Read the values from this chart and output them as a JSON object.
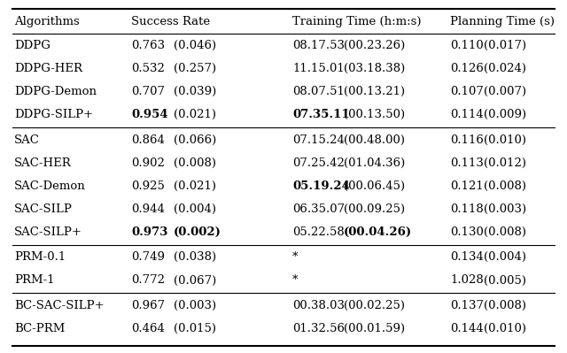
{
  "headers": [
    "Algorithms",
    "Success Rate",
    "Training Time (h:m:s)",
    "Planning Time (s)"
  ],
  "rows": [
    {
      "group": "DDPG",
      "algo": "DDPG",
      "sr_main": "0.763",
      "sr_std": "(0.046)",
      "sr_bm": false,
      "sr_bs": false,
      "tt_main": "08.17.53",
      "tt_std": "(00.23.26)",
      "tt_bm": false,
      "tt_bs": false,
      "pt_main": "0.110",
      "pt_std": "(0.017)",
      "pt_bm": false,
      "pt_bs": false
    },
    {
      "group": "DDPG",
      "algo": "DDPG-HER",
      "sr_main": "0.532",
      "sr_std": "(0.257)",
      "sr_bm": false,
      "sr_bs": false,
      "tt_main": "11.15.01",
      "tt_std": "(03.18.38)",
      "tt_bm": false,
      "tt_bs": false,
      "pt_main": "0.126",
      "pt_std": "(0.024)",
      "pt_bm": false,
      "pt_bs": false
    },
    {
      "group": "DDPG",
      "algo": "DDPG-Demon",
      "sr_main": "0.707",
      "sr_std": "(0.039)",
      "sr_bm": false,
      "sr_bs": false,
      "tt_main": "08.07.51",
      "tt_std": "(00.13.21)",
      "tt_bm": false,
      "tt_bs": false,
      "pt_main": "0.107",
      "pt_std": "(0.007)",
      "pt_bm": false,
      "pt_bs": false
    },
    {
      "group": "DDPG",
      "algo": "DDPG-SILP+",
      "sr_main": "0.954",
      "sr_std": "(0.021)",
      "sr_bm": true,
      "sr_bs": false,
      "tt_main": "07.35.11",
      "tt_std": "(00.13.50)",
      "tt_bm": true,
      "tt_bs": false,
      "pt_main": "0.114",
      "pt_std": "(0.009)",
      "pt_bm": false,
      "pt_bs": false
    },
    {
      "group": "SAC",
      "algo": "SAC",
      "sr_main": "0.864",
      "sr_std": "(0.066)",
      "sr_bm": false,
      "sr_bs": false,
      "tt_main": "07.15.24",
      "tt_std": "(00.48.00)",
      "tt_bm": false,
      "tt_bs": false,
      "pt_main": "0.116",
      "pt_std": "(0.010)",
      "pt_bm": false,
      "pt_bs": false
    },
    {
      "group": "SAC",
      "algo": "SAC-HER",
      "sr_main": "0.902",
      "sr_std": "(0.008)",
      "sr_bm": false,
      "sr_bs": false,
      "tt_main": "07.25.42",
      "tt_std": "(01.04.36)",
      "tt_bm": false,
      "tt_bs": false,
      "pt_main": "0.113",
      "pt_std": "(0.012)",
      "pt_bm": false,
      "pt_bs": false
    },
    {
      "group": "SAC",
      "algo": "SAC-Demon",
      "sr_main": "0.925",
      "sr_std": "(0.021)",
      "sr_bm": false,
      "sr_bs": false,
      "tt_main": "05.19.24",
      "tt_std": "(00.06.45)",
      "tt_bm": true,
      "tt_bs": false,
      "pt_main": "0.121",
      "pt_std": "(0.008)",
      "pt_bm": false,
      "pt_bs": false
    },
    {
      "group": "SAC",
      "algo": "SAC-SILP",
      "sr_main": "0.944",
      "sr_std": "(0.004)",
      "sr_bm": false,
      "sr_bs": false,
      "tt_main": "06.35.07",
      "tt_std": "(00.09.25)",
      "tt_bm": false,
      "tt_bs": false,
      "pt_main": "0.118",
      "pt_std": "(0.003)",
      "pt_bm": false,
      "pt_bs": false
    },
    {
      "group": "SAC",
      "algo": "SAC-SILP+",
      "sr_main": "0.973",
      "sr_std": "(0.002)",
      "sr_bm": true,
      "sr_bs": true,
      "tt_main": "05.22.58",
      "tt_std": "(00.04.26)",
      "tt_bm": false,
      "tt_bs": true,
      "pt_main": "0.130",
      "pt_std": "(0.008)",
      "pt_bm": false,
      "pt_bs": false
    },
    {
      "group": "PRM",
      "algo": "PRM-0.1",
      "sr_main": "0.749",
      "sr_std": "(0.038)",
      "sr_bm": false,
      "sr_bs": false,
      "tt_main": "*",
      "tt_std": "",
      "tt_bm": false,
      "tt_bs": false,
      "pt_main": "0.134",
      "pt_std": "(0.004)",
      "pt_bm": false,
      "pt_bs": false
    },
    {
      "group": "PRM",
      "algo": "PRM-1",
      "sr_main": "0.772",
      "sr_std": "(0.067)",
      "sr_bm": false,
      "sr_bs": false,
      "tt_main": "*",
      "tt_std": "",
      "tt_bm": false,
      "tt_bs": false,
      "pt_main": "1.028",
      "pt_std": "(0.005)",
      "pt_bm": false,
      "pt_bs": false
    },
    {
      "group": "BC",
      "algo": "BC-SAC-SILP+",
      "sr_main": "0.967",
      "sr_std": "(0.003)",
      "sr_bm": false,
      "sr_bs": false,
      "tt_main": "00.38.03",
      "tt_std": "(00.02.25)",
      "tt_bm": false,
      "tt_bs": false,
      "pt_main": "0.137",
      "pt_std": "(0.008)",
      "pt_bm": false,
      "pt_bs": false
    },
    {
      "group": "BC",
      "algo": "BC-PRM",
      "sr_main": "0.464",
      "sr_std": "(0.015)",
      "sr_bm": false,
      "sr_bs": false,
      "tt_main": "01.32.56",
      "tt_std": "(00.01.59)",
      "tt_bm": false,
      "tt_bs": false,
      "pt_main": "0.144",
      "pt_std": "(0.010)",
      "pt_bm": false,
      "pt_bs": false
    }
  ],
  "group_separators_after": [
    3,
    8,
    10
  ],
  "figsize": [
    6.4,
    3.99
  ],
  "dpi": 100,
  "font_size": 9.5,
  "bg_color": "#ffffff"
}
